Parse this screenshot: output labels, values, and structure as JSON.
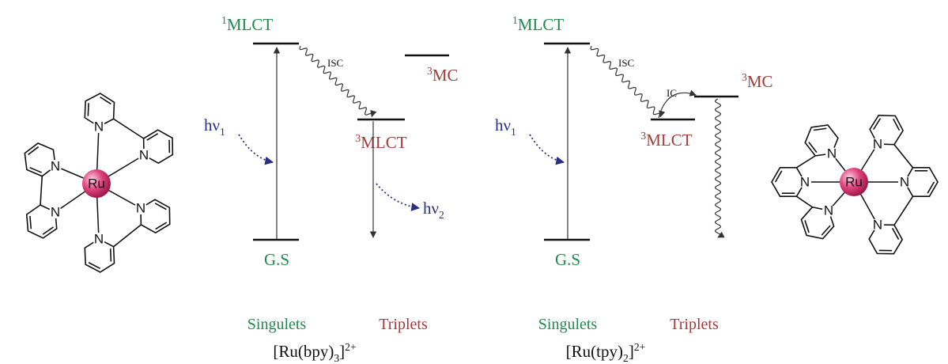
{
  "diagrams": [
    {
      "levels": {
        "singlet": {
          "sup": "1",
          "text": "MLCT"
        },
        "ground": "G.S",
        "mc": {
          "sup": "3",
          "text": "MC"
        },
        "triplet": {
          "sup": "3",
          "text": "MLCT"
        }
      },
      "transitions": {
        "isc": "ISC",
        "absorption": {
          "text": "hν",
          "sub": "1"
        },
        "emission": {
          "text": "hν",
          "sub": "2"
        }
      },
      "columns": [
        "Singulets",
        "Triplets"
      ],
      "complex": {
        "text": "[Ru(bpy)",
        "sub": "3",
        "tail": "]",
        "sup": "2+"
      }
    },
    {
      "levels": {
        "singlet": {
          "sup": "1",
          "text": "MLCT"
        },
        "ground": "G.S",
        "mc": {
          "sup": "3",
          "text": "MC"
        },
        "triplet": {
          "sup": "3",
          "text": "MLCT"
        }
      },
      "transitions": {
        "isc": "ISC",
        "ic": "IC",
        "absorption": {
          "text": "hν",
          "sub": "1"
        }
      },
      "columns": [
        "Singulets",
        "Triplets"
      ],
      "complex": {
        "text": "[Ru(tpy)",
        "sub": "2",
        "tail": "]",
        "sup": "2+"
      }
    }
  ],
  "molecules": [
    {
      "metal": "Ru",
      "donor": "N"
    },
    {
      "metal": "Ru",
      "donor": "N"
    }
  ]
}
